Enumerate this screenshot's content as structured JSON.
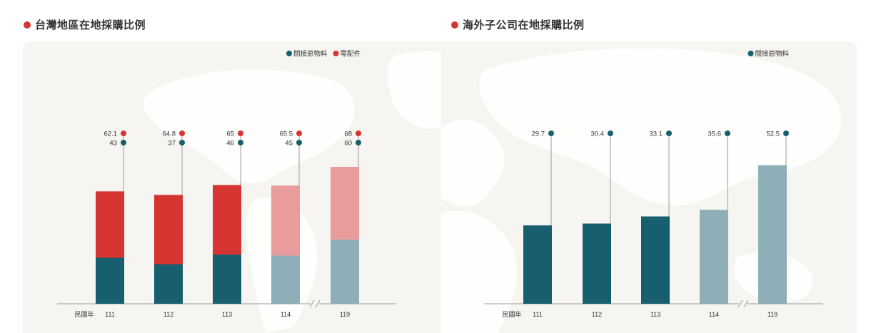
{
  "colors": {
    "accent_red": "#d63430",
    "teal": "#175e6e",
    "red_light": "#ea9b9b",
    "teal_light": "#8eaeb8",
    "axis": "#9a9a9a",
    "text": "#333333"
  },
  "chart_data": [
    {
      "type": "bar",
      "stacked": true,
      "title": "台灣地區在地採購比例",
      "xlabel": "民國年",
      "categories": [
        "111",
        "112",
        "113",
        "114",
        "119"
      ],
      "axis_break_between": [
        "114",
        "119"
      ],
      "projected_categories": [
        "114",
        "119"
      ],
      "legend_position": "top-right",
      "series": [
        {
          "name": "間接原物料",
          "color_key": "teal",
          "values": [
            43,
            37,
            46,
            45,
            60
          ]
        },
        {
          "name": "零配件",
          "color_key": "accent_red",
          "values": [
            62.1,
            64.8,
            65,
            65.5,
            68
          ]
        }
      ],
      "value_labels": {
        "top": [
          "62.1",
          "64.8",
          "65",
          "65.5",
          "68"
        ],
        "bottom": [
          "43",
          "37",
          "46",
          "45",
          "60"
        ]
      }
    },
    {
      "type": "bar",
      "title": "海外子公司在地採購比例",
      "xlabel": "民國年",
      "categories": [
        "111",
        "112",
        "113",
        "114",
        "119"
      ],
      "axis_break_between": [
        "114",
        "119"
      ],
      "projected_categories": [
        "114",
        "119"
      ],
      "legend_position": "top-right",
      "series": [
        {
          "name": "間接原物料",
          "color_key": "teal",
          "values": [
            29.7,
            30.4,
            33.1,
            35.6,
            52.5
          ]
        }
      ],
      "value_labels": {
        "top": [
          "29.7",
          "30.4",
          "33.1",
          "35.6",
          "52.5"
        ]
      }
    }
  ]
}
